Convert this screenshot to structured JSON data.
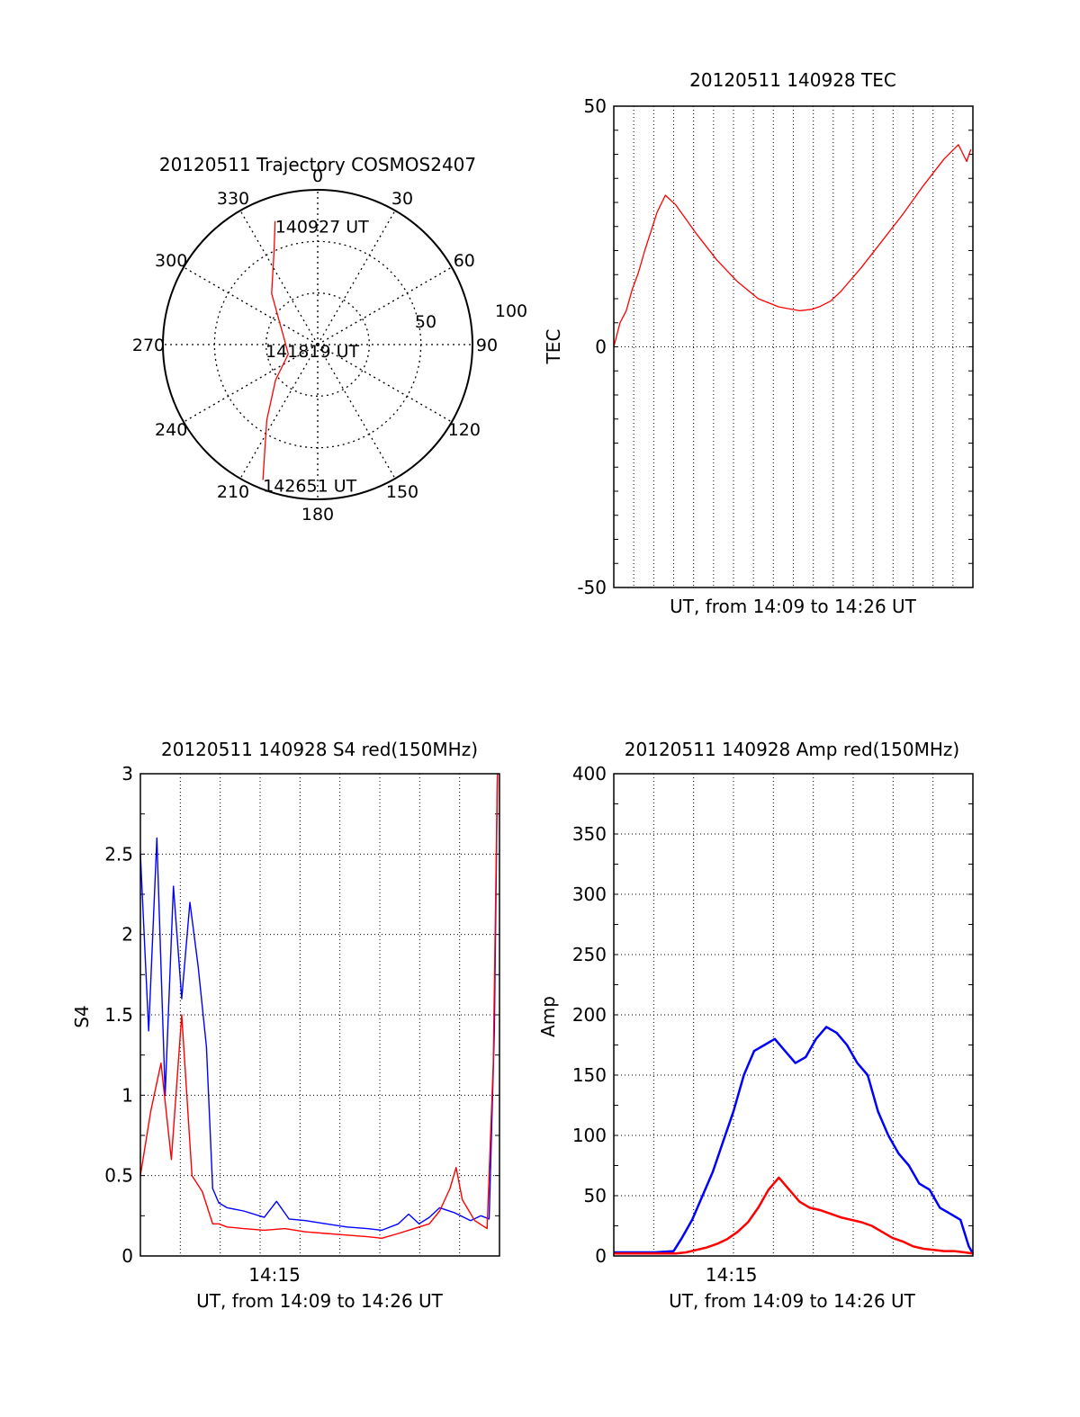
{
  "chart_data": [
    {
      "type": "polar",
      "title": "20120511 Trajectory COSMOS2407",
      "azimuth_labels": [
        "0",
        "30",
        "60",
        "90",
        "120",
        "150",
        "180",
        "210",
        "240",
        "270",
        "300",
        "330"
      ],
      "radial_labels": [
        "50",
        "100"
      ],
      "grid": true,
      "trajectory": {
        "color": "#ff0000",
        "points": [
          {
            "az": 341,
            "el": 14,
            "label": "140927 UT"
          },
          {
            "az": 335,
            "el": 30
          },
          {
            "az": 318,
            "el": 50
          },
          {
            "az": 281,
            "el": 70
          },
          {
            "az": 252,
            "el": 72,
            "label": "141819 UT"
          },
          {
            "az": 230,
            "el": 58
          },
          {
            "az": 214,
            "el": 37
          },
          {
            "az": 202,
            "el": 5,
            "label": "142651 UT"
          }
        ]
      }
    },
    {
      "type": "line",
      "title": "20120511 140928 TEC",
      "xlabel": "UT, from 14:09 to 14:26 UT",
      "ylabel": "TEC",
      "ylim": [
        -50,
        50
      ],
      "yticks": [
        "50",
        "0",
        "-50"
      ],
      "xlim": [
        0,
        17.4
      ],
      "xticks": [],
      "grid": true,
      "series": [
        {
          "color": "#ff0000",
          "x": [
            0.0,
            0.3,
            0.6,
            0.9,
            1.2,
            1.5,
            1.8,
            2.1,
            2.5,
            3.0,
            3.5,
            4.0,
            5.0,
            6.0,
            7.0,
            8.0,
            9.0,
            9.6,
            10.0,
            10.5,
            11.0,
            12.0,
            13.0,
            14.0,
            15.0,
            16.0,
            16.7,
            17.1,
            17.3
          ],
          "y": [
            0.0,
            5.0,
            7.5,
            12.0,
            15.5,
            20.0,
            24.0,
            28.0,
            31.5,
            29.5,
            26.5,
            23.5,
            18.0,
            13.5,
            10.0,
            8.3,
            7.5,
            7.8,
            8.4,
            9.5,
            11.5,
            16.5,
            22.0,
            27.5,
            33.5,
            39.0,
            42.0,
            38.5,
            41.0
          ]
        }
      ]
    },
    {
      "type": "line",
      "title": "20120511 140928 S4 red(150MHz)",
      "xlabel": "UT, from 14:09 to 14:26 UT",
      "ylabel": "S4",
      "ylim": [
        0,
        3
      ],
      "yticks": [
        "0",
        "0.5",
        "1",
        "1.5",
        "2",
        "2.5",
        "3"
      ],
      "xlim": [
        0,
        17.4
      ],
      "xticks": [
        {
          "x": 6.5,
          "label": "14:15"
        }
      ],
      "grid": true,
      "series": [
        {
          "color": "#0000ff",
          "x": [
            0.0,
            0.4,
            0.8,
            1.2,
            1.6,
            2.0,
            2.4,
            2.8,
            3.2,
            3.5,
            3.8,
            4.2,
            5.0,
            6.0,
            6.6,
            7.2,
            8.0,
            9.0,
            10.0,
            11.0,
            11.7,
            12.5,
            13.0,
            13.5,
            14.0,
            14.5,
            15.2,
            16.0,
            16.5,
            16.9,
            17.15,
            17.3
          ],
          "y": [
            2.5,
            1.4,
            2.6,
            1.0,
            2.3,
            1.6,
            2.2,
            1.8,
            1.3,
            0.42,
            0.33,
            0.3,
            0.28,
            0.24,
            0.34,
            0.23,
            0.22,
            0.2,
            0.18,
            0.17,
            0.16,
            0.2,
            0.26,
            0.2,
            0.24,
            0.3,
            0.27,
            0.22,
            0.25,
            0.23,
            1.4,
            3.0
          ]
        },
        {
          "color": "#ff0000",
          "x": [
            0.0,
            0.5,
            1.0,
            1.5,
            2.0,
            2.5,
            3.0,
            3.5,
            3.8,
            4.2,
            5.0,
            6.0,
            7.0,
            8.0,
            9.0,
            10.0,
            11.0,
            11.7,
            12.5,
            13.0,
            13.5,
            14.0,
            14.5,
            15.0,
            15.3,
            15.6,
            16.2,
            16.8,
            17.1,
            17.3
          ],
          "y": [
            0.5,
            0.9,
            1.2,
            0.6,
            1.5,
            0.5,
            0.4,
            0.2,
            0.2,
            0.18,
            0.17,
            0.16,
            0.17,
            0.15,
            0.14,
            0.13,
            0.12,
            0.11,
            0.14,
            0.16,
            0.18,
            0.2,
            0.28,
            0.42,
            0.55,
            0.35,
            0.22,
            0.17,
            1.2,
            3.0
          ]
        }
      ]
    },
    {
      "type": "line",
      "title": "20120511 140928 Amp red(150MHz)",
      "xlabel": "UT, from 14:09 to 14:26 UT",
      "ylabel": "Amp",
      "ylim": [
        0,
        400
      ],
      "yticks": [
        "0",
        "50",
        "100",
        "150",
        "200",
        "250",
        "300",
        "350",
        "400"
      ],
      "xlim": [
        0,
        17.4
      ],
      "xticks": [
        {
          "x": 5.7,
          "label": "14:15"
        }
      ],
      "grid": true,
      "series": [
        {
          "color": "#0000ff",
          "x": [
            0.0,
            1.0,
            2.0,
            2.9,
            3.3,
            3.8,
            4.3,
            4.8,
            5.3,
            5.8,
            6.3,
            6.8,
            7.3,
            7.8,
            8.3,
            8.8,
            9.3,
            9.8,
            10.3,
            10.8,
            11.3,
            11.8,
            12.3,
            12.8,
            13.3,
            13.8,
            14.3,
            14.8,
            15.3,
            15.8,
            16.3,
            16.8,
            17.2,
            17.4
          ],
          "y": [
            3,
            3,
            3,
            4,
            15,
            30,
            50,
            70,
            95,
            120,
            150,
            170,
            175,
            180,
            170,
            160,
            165,
            180,
            190,
            185,
            175,
            160,
            150,
            120,
            100,
            85,
            75,
            60,
            55,
            40,
            35,
            30,
            8,
            2
          ]
        },
        {
          "color": "#ff0000",
          "x": [
            0.0,
            1.0,
            2.0,
            3.0,
            3.5,
            4.0,
            4.5,
            5.0,
            5.5,
            6.0,
            6.5,
            7.0,
            7.5,
            8.0,
            8.5,
            9.0,
            9.5,
            10.0,
            10.5,
            11.0,
            11.5,
            12.0,
            12.5,
            13.0,
            13.5,
            14.0,
            14.5,
            15.0,
            15.5,
            16.0,
            16.5,
            17.0,
            17.4
          ],
          "y": [
            2,
            2,
            2,
            2,
            3,
            5,
            7,
            10,
            14,
            20,
            28,
            40,
            55,
            65,
            55,
            45,
            40,
            38,
            35,
            32,
            30,
            28,
            25,
            20,
            15,
            12,
            8,
            6,
            5,
            4,
            4,
            3,
            2
          ]
        }
      ]
    }
  ]
}
